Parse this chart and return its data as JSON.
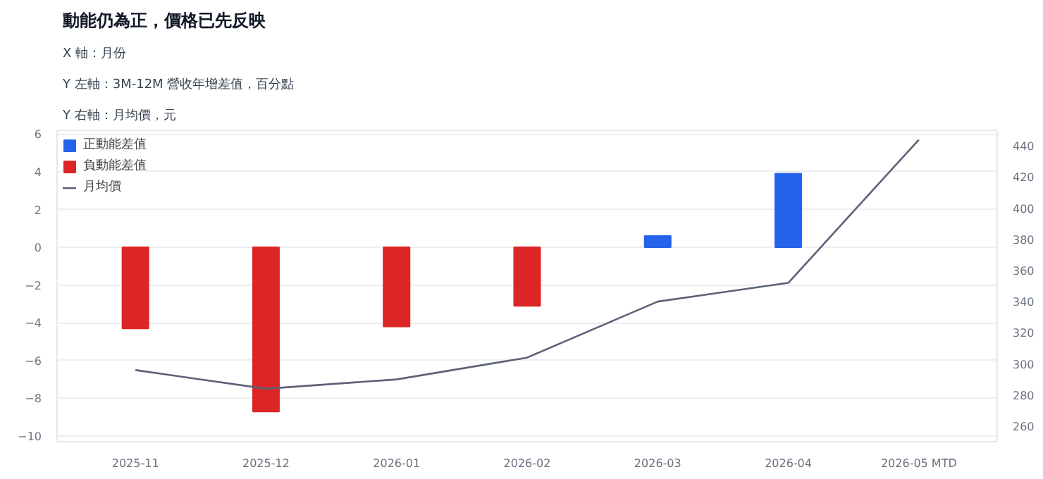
{
  "chart_data": {
    "type": "bar",
    "title": "動能仍為正，價格已先反映",
    "annotations": [
      "X 軸：月份",
      "Y 左軸：3M-12M 營收年增差值，百分點",
      "Y 右軸：月均價，元"
    ],
    "categories": [
      "2025-11",
      "2025-12",
      "2026-01",
      "2026-02",
      "2026-03",
      "2026-04",
      "2026-05 MTD"
    ],
    "series": [
      {
        "name": "正動能差值",
        "color": "#2563eb",
        "values": [
          null,
          null,
          null,
          null,
          0.6,
          3.9,
          null
        ]
      },
      {
        "name": "負動能差值",
        "color": "#dc2626",
        "values": [
          -4.3,
          -8.7,
          -4.2,
          -3.1,
          null,
          null,
          null
        ]
      },
      {
        "name": "月均價",
        "type": "line",
        "axis": "y2",
        "color": "#5b6178",
        "values": [
          296,
          284,
          290,
          304,
          340,
          352,
          444
        ]
      }
    ],
    "ylim": [
      -10.3,
      6.2
    ],
    "yticks": [
      -10,
      -8,
      -6,
      -4,
      -2,
      0,
      2,
      4,
      6
    ],
    "y2lim": [
      250,
      450
    ],
    "y2ticks": [
      260,
      280,
      300,
      320,
      340,
      360,
      380,
      400,
      420,
      440
    ],
    "grid": "y",
    "legend": "top left"
  }
}
